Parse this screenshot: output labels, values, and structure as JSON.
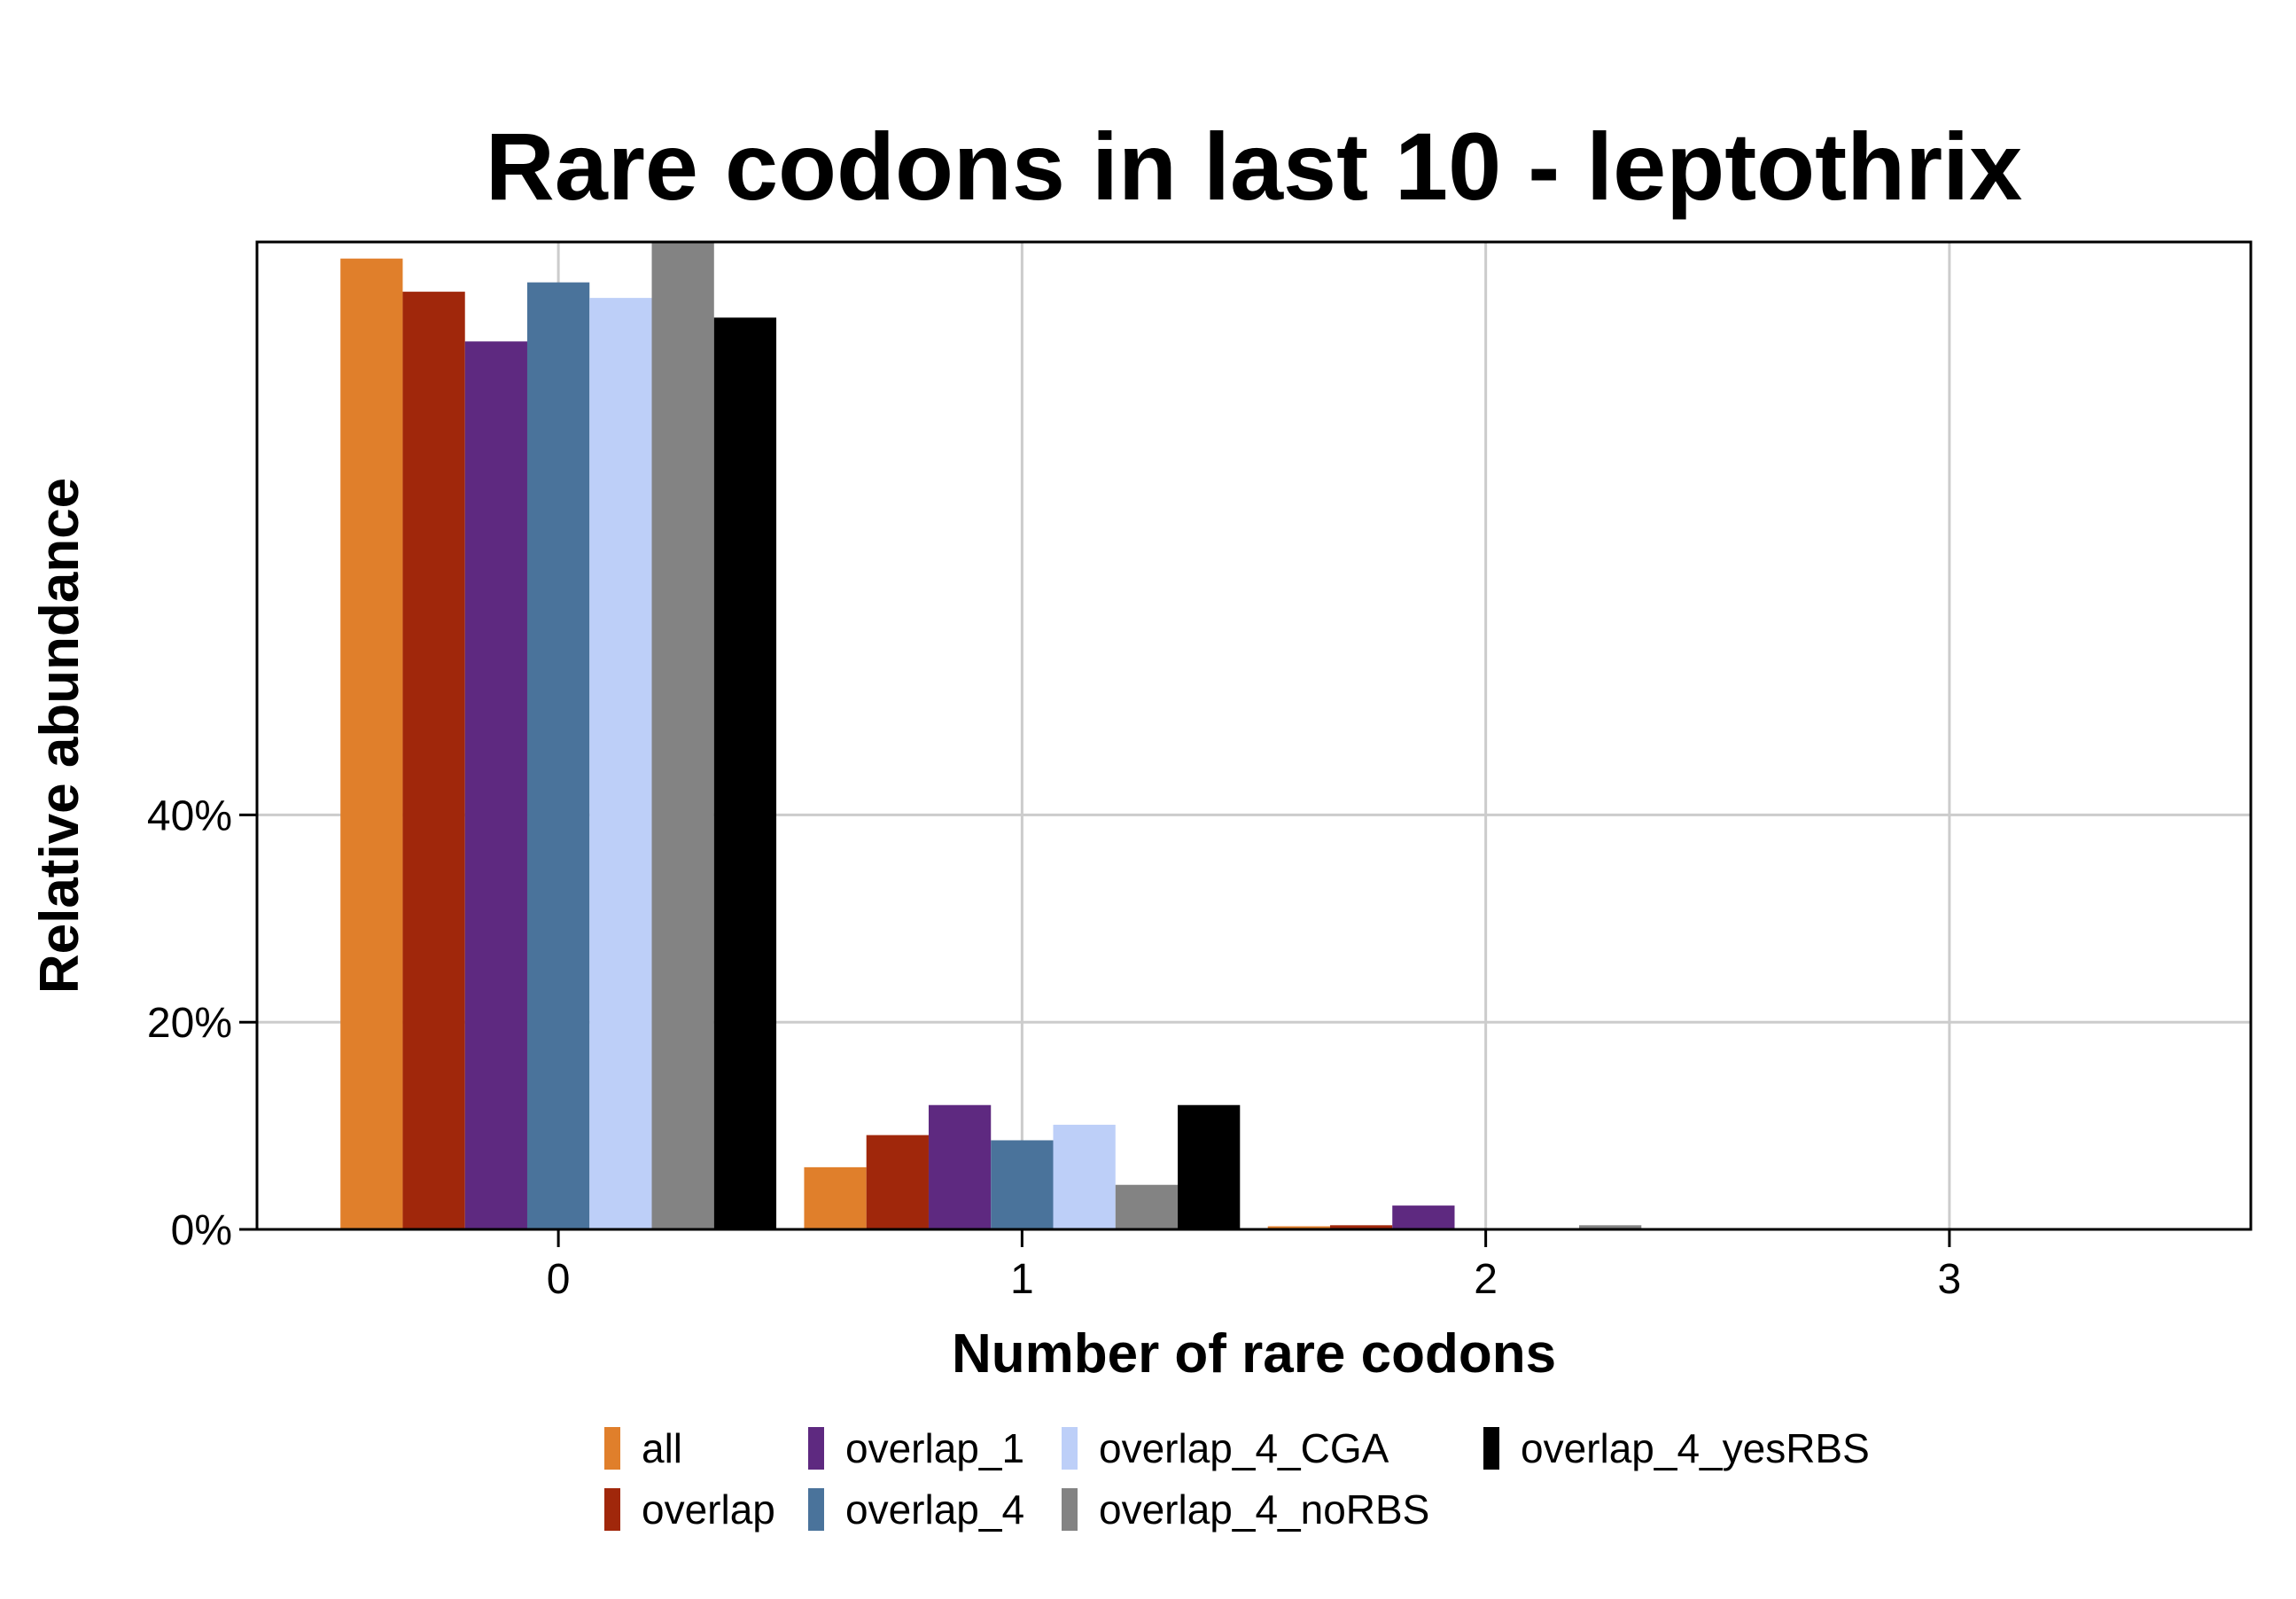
{
  "chart_data": {
    "type": "bar",
    "title": "Rare codons in last 10 - leptothrix",
    "xlabel": "Number of rare codons",
    "ylabel": "Relative abundance",
    "categories": [
      "0",
      "1",
      "2",
      "3"
    ],
    "y_ticks": [
      0,
      20,
      40
    ],
    "y_tick_labels": [
      "0%",
      "20%",
      "40%"
    ],
    "ylim": [
      0,
      95.3
    ],
    "grid": true,
    "legend_position": "bottom",
    "series": [
      {
        "name": "all",
        "color": "#E07F2B",
        "values": [
          93.7,
          6.0,
          0.3,
          0
        ]
      },
      {
        "name": "overlap",
        "color": "#A0270B",
        "values": [
          90.5,
          9.1,
          0.4,
          0
        ]
      },
      {
        "name": "overlap_1",
        "color": "#5E2980",
        "values": [
          85.7,
          12.0,
          2.3,
          0
        ]
      },
      {
        "name": "overlap_4",
        "color": "#4A739B",
        "values": [
          91.4,
          8.6,
          0,
          0
        ]
      },
      {
        "name": "overlap_4_CGA",
        "color": "#BDCFF8",
        "values": [
          89.9,
          10.1,
          0,
          0
        ]
      },
      {
        "name": "overlap_4_noRBS",
        "color": "#838383",
        "values": [
          95.3,
          4.3,
          0.4,
          0
        ]
      },
      {
        "name": "overlap_4_yesRBS",
        "color": "#000000",
        "values": [
          88.0,
          12.0,
          0,
          0
        ]
      }
    ]
  }
}
